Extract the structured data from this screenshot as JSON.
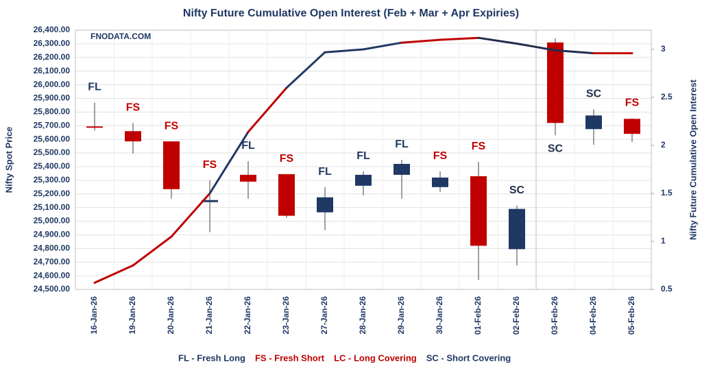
{
  "chart_data": {
    "type": "candlestick",
    "title": "Nifty Future Cumulative Open Interest (Feb + Mar + Apr Expiries)",
    "watermark": "FNODATA.COM",
    "y_label": "Nifty Spot Price",
    "y2_label": "Nifty Future Cumulative Open Interest",
    "categories": [
      "16-Jan-26",
      "19-Jan-26",
      "20-Jan-26",
      "21-Jan-26",
      "22-Jan-26",
      "23-Jan-26",
      "27-Jan-26",
      "28-Jan-26",
      "29-Jan-26",
      "30-Jan-26",
      "01-Feb-26",
      "02-Feb-26",
      "03-Feb-26",
      "04-Feb-26",
      "05-Feb-26"
    ],
    "candles": {
      "open": [
        25695,
        25660,
        25585,
        25140,
        25340,
        25345,
        25065,
        25260,
        25340,
        25250,
        25330,
        24795,
        26310,
        25675,
        25750
      ],
      "high": [
        25870,
        25720,
        25585,
        25300,
        25440,
        25345,
        25250,
        25365,
        25450,
        25365,
        25435,
        25115,
        26340,
        25820,
        25755
      ],
      "low": [
        25665,
        25495,
        25165,
        24920,
        25165,
        25025,
        24935,
        25190,
        25165,
        25215,
        24570,
        24675,
        25630,
        25560,
        25580
      ],
      "close": [
        25685,
        25585,
        25235,
        25155,
        25290,
        25040,
        25175,
        25340,
        25420,
        25320,
        24820,
        25090,
        25720,
        25775,
        25640
      ],
      "up_color": "#1f3864",
      "down_color": "#c00000"
    },
    "oi": {
      "axis": "y2",
      "values": [
        0.57,
        0.75,
        1.05,
        1.5,
        2.14,
        2.6,
        2.97,
        3.0,
        3.07,
        3.1,
        3.12,
        3.06,
        2.99,
        2.96,
        2.96
      ]
    },
    "signals": [
      "FL",
      "FS",
      "FS",
      "FS",
      "FL",
      "FS",
      "FL",
      "FL",
      "FL",
      "FS",
      "FS",
      "SC",
      "SC",
      "SC",
      "FS"
    ],
    "signal_colors": {
      "FL": "#1f3864",
      "FS": "#c00000",
      "LC": "#c00000",
      "SC": "#1f2d4d"
    },
    "legend": [
      {
        "text": "FL - Fresh Long",
        "color": "#1f3864"
      },
      {
        "text": "FS - Fresh Short",
        "color": "#c00000"
      },
      {
        "text": "LC - Long Covering",
        "color": "#c00000"
      },
      {
        "text": "SC - Short Covering",
        "color": "#1f3864"
      }
    ],
    "ylim": [
      24500,
      26400
    ],
    "yticks": [
      {
        "value": 24500,
        "label": "24,500.00"
      },
      {
        "value": 24600,
        "label": "24,600.00"
      },
      {
        "value": 24700,
        "label": "24,700.00"
      },
      {
        "value": 24800,
        "label": "24,800.00"
      },
      {
        "value": 24900,
        "label": "24,900.00"
      },
      {
        "value": 25000,
        "label": "25,000.00"
      },
      {
        "value": 25100,
        "label": "25,100.00"
      },
      {
        "value": 25200,
        "label": "25,200.00"
      },
      {
        "value": 25300,
        "label": "25,300.00"
      },
      {
        "value": 25400,
        "label": "25,400.00"
      },
      {
        "value": 25500,
        "label": "25,500.00"
      },
      {
        "value": 25600,
        "label": "25,600.00"
      },
      {
        "value": 25700,
        "label": "25,700.00"
      },
      {
        "value": 25800,
        "label": "25,800.00"
      },
      {
        "value": 25900,
        "label": "25,900.00"
      },
      {
        "value": 26000,
        "label": "26,000.00"
      },
      {
        "value": 26100,
        "label": "26,100.00"
      },
      {
        "value": 26200,
        "label": "26,200.00"
      },
      {
        "value": 26300,
        "label": "26,300.00"
      },
      {
        "value": 26400,
        "label": "26,400.00"
      }
    ],
    "y2lim": [
      0.5,
      3.2
    ],
    "y2ticks": [
      0.5,
      1,
      1.5,
      2,
      2.5,
      3
    ],
    "grid": true
  }
}
